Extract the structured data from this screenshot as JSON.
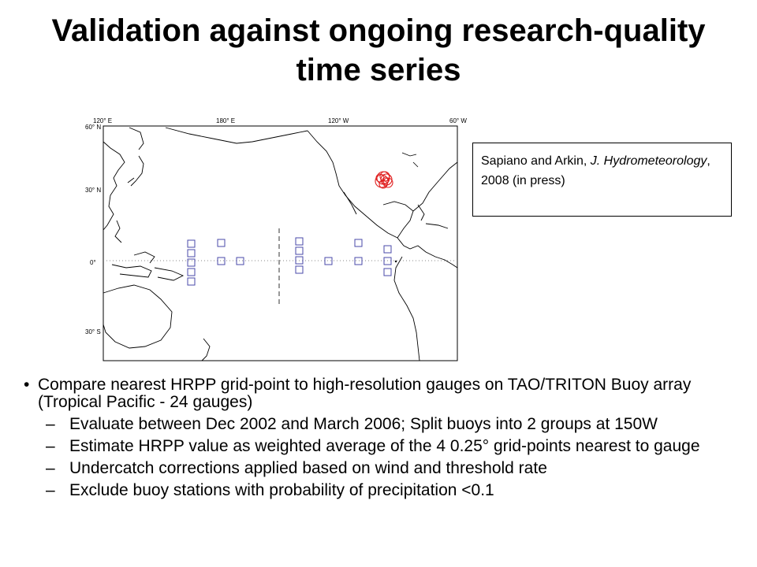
{
  "slide": {
    "title": "Validation against ongoing research-quality time series"
  },
  "map": {
    "top_labels": [
      "120° E",
      "180° E",
      "120° W",
      "60° W"
    ],
    "left_labels": [
      "60° N",
      "30° N",
      "0°",
      "30° S"
    ],
    "buoy_marker_color": "#4a4aaa",
    "gauge_marker_color": "#e02020"
  },
  "citation": {
    "authors": "Sapiano and Arkin, ",
    "journal": "J. Hydrometeorology",
    "rest": ", 2008 (in press)"
  },
  "content": {
    "bullet": "Compare nearest HRPP grid-point to high-resolution gauges on TAO/TRITON Buoy array (Tropical Pacific - 24 gauges)",
    "sub_bullets": [
      "Evaluate between Dec 2002 and March 2006; Split buoys into 2 groups at 150W",
      "Estimate HRPP value as weighted average of the 4 0.25° grid-points nearest to gauge",
      "Undercatch corrections applied based on wind and threshold rate",
      "Exclude buoy stations with probability of precipitation <0.1"
    ]
  }
}
